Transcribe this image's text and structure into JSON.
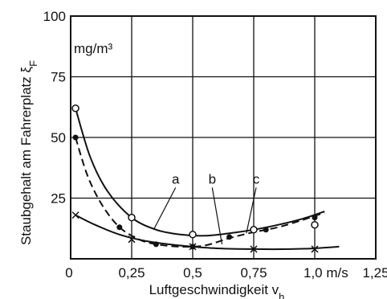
{
  "chart_data": {
    "type": "line",
    "xlabel": "Luftgeschwindigkeit v",
    "xlabel_sub": "h",
    "ylabel": "Staubgehalt am Fahrerplatz ξ",
    "ylabel_sub": "F",
    "y_unit": "mg/m³",
    "x_tick_labels": [
      "0",
      "0,25",
      "0,5",
      "0,75",
      "1,0 m/s",
      "1,25"
    ],
    "x_ticks": [
      0,
      0.25,
      0.5,
      0.75,
      1.0,
      1.25
    ],
    "y_tick_labels": [
      "100",
      "75",
      "50",
      "25"
    ],
    "y_ticks": [
      100,
      75,
      50,
      25
    ],
    "xlim": [
      0,
      1.25
    ],
    "ylim": [
      0,
      100
    ],
    "grid": true,
    "series": [
      {
        "name": "a",
        "style": "solid",
        "marker": "open-circle",
        "points": [
          [
            0.02,
            62
          ],
          [
            0.25,
            17
          ],
          [
            0.5,
            10
          ],
          [
            0.75,
            12
          ],
          [
            1.0,
            14
          ]
        ],
        "curve": [
          [
            0.02,
            62
          ],
          [
            0.08,
            42
          ],
          [
            0.15,
            28
          ],
          [
            0.25,
            17
          ],
          [
            0.35,
            12
          ],
          [
            0.45,
            10
          ],
          [
            0.55,
            9.5
          ],
          [
            0.65,
            10.5
          ],
          [
            0.75,
            12
          ],
          [
            0.85,
            14
          ],
          [
            0.95,
            16.5
          ],
          [
            1.04,
            19.5
          ]
        ]
      },
      {
        "name": "b",
        "style": "dashed",
        "marker": "filled-circle",
        "points": [
          [
            0.02,
            50
          ],
          [
            0.2,
            13
          ],
          [
            0.35,
            6
          ],
          [
            0.5,
            5
          ],
          [
            0.65,
            9
          ],
          [
            0.8,
            12
          ],
          [
            1.0,
            17
          ]
        ],
        "curve": [
          [
            0.02,
            50
          ],
          [
            0.07,
            34
          ],
          [
            0.13,
            22
          ],
          [
            0.2,
            13
          ],
          [
            0.28,
            8
          ],
          [
            0.35,
            6
          ],
          [
            0.45,
            5
          ],
          [
            0.55,
            5.5
          ],
          [
            0.65,
            8.5
          ],
          [
            0.75,
            11
          ],
          [
            0.85,
            13
          ],
          [
            0.95,
            16
          ],
          [
            1.04,
            19
          ]
        ]
      },
      {
        "name": "c",
        "style": "solid",
        "marker": "cross",
        "points": [
          [
            0.02,
            18
          ],
          [
            0.25,
            8
          ],
          [
            0.5,
            5
          ],
          [
            0.75,
            4
          ],
          [
            1.0,
            4
          ]
        ],
        "curve": [
          [
            0.02,
            18
          ],
          [
            0.1,
            14
          ],
          [
            0.2,
            10
          ],
          [
            0.3,
            7.5
          ],
          [
            0.4,
            6
          ],
          [
            0.5,
            5
          ],
          [
            0.6,
            4.3
          ],
          [
            0.75,
            4
          ],
          [
            0.9,
            4
          ],
          [
            1.0,
            4.3
          ],
          [
            1.1,
            5
          ]
        ]
      }
    ],
    "labels": [
      {
        "text": "a",
        "x": 0.43,
        "y": 31,
        "to": [
          0.34,
          12
        ]
      },
      {
        "text": "b",
        "x": 0.58,
        "y": 31,
        "to": [
          0.62,
          6
        ]
      },
      {
        "text": "c",
        "x": 0.76,
        "y": 31,
        "to": [
          0.72,
          10.5
        ]
      }
    ]
  }
}
